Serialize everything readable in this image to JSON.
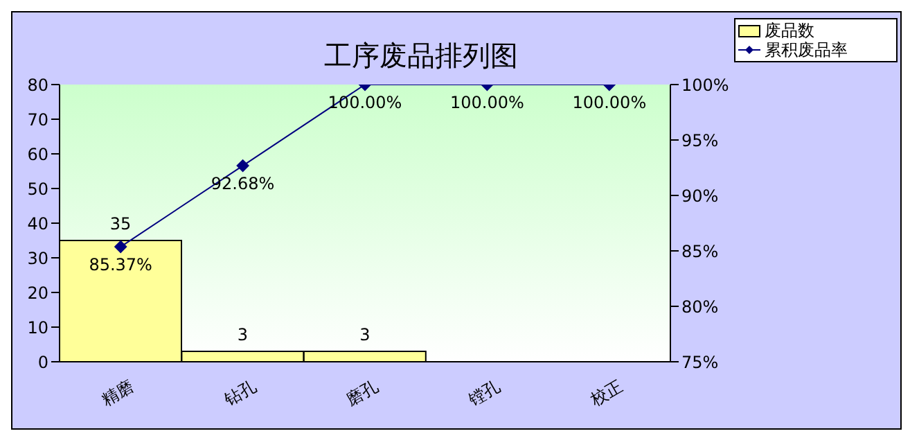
{
  "chart_data": {
    "type": "bar",
    "title": "工序废品排列图",
    "categories": [
      "精磨",
      "钻孔",
      "磨孔",
      "镗孔",
      "校正"
    ],
    "series": [
      {
        "name": "废品数",
        "color": "#ffff99",
        "values": [
          35,
          3,
          3,
          0,
          0
        ],
        "value_labels": [
          "35",
          "3",
          "3",
          null,
          null
        ]
      },
      {
        "name": "累积废品率",
        "type": "line",
        "axis": "y2",
        "color": "#000080",
        "marker": "diamond",
        "values": [
          85.37,
          92.68,
          100,
          100,
          100
        ],
        "value_labels": [
          "85.37%",
          "92.68%",
          "100.00%",
          "100.00%",
          "100.00%"
        ]
      }
    ],
    "ylim": [
      0,
      80
    ],
    "yticks": [
      0,
      10,
      20,
      30,
      40,
      50,
      60,
      70,
      80
    ],
    "y2lim": [
      75,
      100
    ],
    "y2ticks": [
      {
        "value": 75,
        "label": "75%"
      },
      {
        "value": 80,
        "label": "80%"
      },
      {
        "value": 85,
        "label": "85%"
      },
      {
        "value": 90,
        "label": "90%"
      },
      {
        "value": 95,
        "label": "95%"
      },
      {
        "value": 100,
        "label": "100%"
      }
    ],
    "legend": "top right"
  }
}
